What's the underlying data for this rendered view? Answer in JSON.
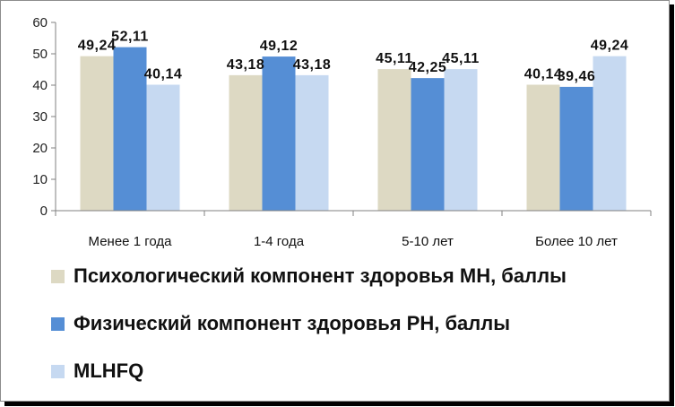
{
  "chart_data": {
    "type": "bar",
    "title": "",
    "xlabel": "",
    "ylabel": "",
    "ylim": [
      0,
      60
    ],
    "yticks": [
      0,
      10,
      20,
      30,
      40,
      50,
      60
    ],
    "grid": false,
    "legend_position": "bottom",
    "categories": [
      "Менее 1 года",
      "1-4 года",
      "5-10 лет",
      "Более 10 лет"
    ],
    "series": [
      {
        "name": "Психологический компонент здоровья MH, баллы",
        "color": "#ddd9c3",
        "values": [
          49.24,
          43.18,
          45.11,
          40.14
        ],
        "labels": [
          "49,24",
          "43,18",
          "45,11",
          "40,14"
        ]
      },
      {
        "name": "Физический компонент здоровья PH, баллы",
        "color": "#558ed5",
        "values": [
          52.11,
          49.12,
          42.25,
          39.46
        ],
        "labels": [
          "52,11",
          "49,12",
          "42,25",
          "39,46"
        ]
      },
      {
        "name": "MLHFQ",
        "color": "#c6d9f1",
        "values": [
          40.14,
          43.18,
          45.11,
          49.24
        ],
        "labels": [
          "40,14",
          "43,18",
          "45,11",
          "49,24"
        ]
      }
    ]
  }
}
